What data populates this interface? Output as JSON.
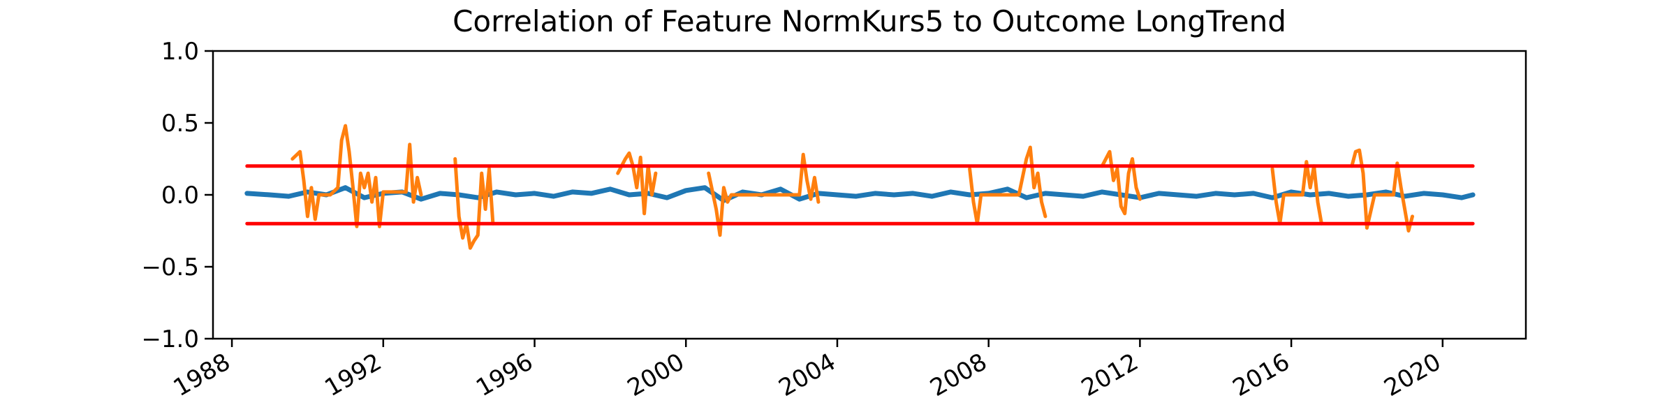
{
  "chart_data": {
    "type": "line",
    "title": "Correlation of Feature NormKurs5 to Outcome LongTrend",
    "xlabel": "",
    "ylabel": "",
    "xlim": [
      1987.5,
      2022.2
    ],
    "ylim": [
      -1.0,
      1.0
    ],
    "x_ticks": [
      1988,
      1992,
      1996,
      2000,
      2004,
      2008,
      2012,
      2016,
      2020
    ],
    "x_tick_labels": [
      "1988",
      "1992",
      "1996",
      "2000",
      "2004",
      "2008",
      "2012",
      "2016",
      "2020"
    ],
    "y_ticks": [
      -1.0,
      -0.5,
      0.0,
      0.5,
      1.0
    ],
    "y_tick_labels": [
      "−1.0",
      "−0.5",
      "0.0",
      "0.5",
      "1.0"
    ],
    "grid": false,
    "legend": "none",
    "series": [
      {
        "color": "#1f77b4",
        "x": [
          1988.4,
          1989.0,
          1989.5,
          1990.0,
          1990.5,
          1991.0,
          1991.5,
          1992.0,
          1992.5,
          1993.0,
          1993.5,
          1994.0,
          1994.5,
          1995.0,
          1995.5,
          1996.0,
          1996.5,
          1997.0,
          1997.5,
          1998.0,
          1998.5,
          1999.0,
          1999.5,
          2000.0,
          2000.5,
          2001.0,
          2001.5,
          2002.0,
          2002.5,
          2003.0,
          2003.5,
          2004.0,
          2004.5,
          2005.0,
          2005.5,
          2006.0,
          2006.5,
          2007.0,
          2007.5,
          2008.0,
          2008.5,
          2009.0,
          2009.5,
          2010.0,
          2010.5,
          2011.0,
          2011.5,
          2012.0,
          2012.5,
          2013.0,
          2013.5,
          2014.0,
          2014.5,
          2015.0,
          2015.5,
          2016.0,
          2016.5,
          2017.0,
          2017.5,
          2018.0,
          2018.5,
          2019.0,
          2019.5,
          2020.0,
          2020.5,
          2020.8
        ],
        "y": [
          0.01,
          0.0,
          -0.01,
          0.02,
          0.0,
          0.05,
          -0.02,
          0.01,
          0.02,
          -0.03,
          0.01,
          0.0,
          -0.02,
          0.02,
          0.0,
          0.01,
          -0.01,
          0.02,
          0.01,
          0.04,
          0.0,
          0.01,
          -0.02,
          0.03,
          0.05,
          -0.04,
          0.02,
          0.0,
          0.04,
          -0.03,
          0.01,
          0.0,
          -0.01,
          0.01,
          0.0,
          0.01,
          -0.01,
          0.02,
          0.0,
          0.01,
          0.04,
          -0.02,
          0.01,
          0.0,
          -0.01,
          0.02,
          0.0,
          -0.02,
          0.01,
          0.0,
          -0.01,
          0.01,
          0.0,
          0.01,
          -0.02,
          0.02,
          0.0,
          0.01,
          -0.01,
          0.0,
          0.02,
          -0.01,
          0.01,
          0.0,
          -0.02,
          0.0
        ]
      },
      {
        "color": "#ff7f0e",
        "segments": [
          {
            "x": [
              1989.6,
              1989.8,
              1989.9,
              1990.0,
              1990.1,
              1990.2,
              1990.3,
              1990.6,
              1990.8,
              1990.9,
              1991.0,
              1991.1,
              1991.2,
              1991.3,
              1991.4,
              1991.5,
              1991.6,
              1991.7,
              1991.8,
              1991.9,
              1992.0,
              1992.3,
              1992.6,
              1992.7,
              1992.8,
              1992.9,
              1993.0
            ],
            "y": [
              0.25,
              0.3,
              0.1,
              -0.15,
              0.05,
              -0.17,
              0.0,
              0.0,
              0.05,
              0.38,
              0.48,
              0.3,
              0.05,
              -0.22,
              0.15,
              0.05,
              0.15,
              -0.05,
              0.12,
              -0.22,
              0.02,
              0.02,
              0.02,
              0.35,
              -0.05,
              0.12,
              0.0
            ]
          },
          {
            "x": [
              1993.9,
              1994.0,
              1994.1,
              1994.2,
              1994.3,
              1994.4,
              1994.5,
              1994.6,
              1994.7,
              1994.8,
              1994.9
            ],
            "y": [
              0.25,
              -0.15,
              -0.3,
              -0.2,
              -0.37,
              -0.32,
              -0.28,
              0.15,
              -0.1,
              0.18,
              -0.2
            ]
          },
          {
            "x": [
              1998.2,
              1998.4,
              1998.5,
              1998.6,
              1998.7,
              1998.8,
              1998.9,
              1999.0,
              1999.1,
              1999.2
            ],
            "y": [
              0.15,
              0.25,
              0.29,
              0.2,
              0.05,
              0.26,
              -0.13,
              0.2,
              0.0,
              0.15
            ]
          },
          {
            "x": [
              2000.6,
              2000.8,
              2000.9,
              2001.0,
              2001.1,
              2001.2,
              2001.5,
              2002.0,
              2002.5,
              2003.0,
              2003.1,
              2003.2,
              2003.3,
              2003.4,
              2003.5
            ],
            "y": [
              0.15,
              -0.1,
              -0.28,
              0.05,
              -0.05,
              0.0,
              0.0,
              0.0,
              0.0,
              0.0,
              0.28,
              0.1,
              -0.03,
              0.12,
              -0.05
            ]
          },
          {
            "x": [
              2007.5,
              2007.6,
              2007.7,
              2007.8,
              2008.0,
              2008.5,
              2008.8,
              2009.0,
              2009.1,
              2009.2,
              2009.3,
              2009.4,
              2009.5
            ],
            "y": [
              0.18,
              -0.05,
              -0.2,
              0.0,
              0.0,
              0.0,
              0.0,
              0.25,
              0.33,
              0.05,
              0.15,
              -0.05,
              -0.15
            ]
          },
          {
            "x": [
              2011.0,
              2011.2,
              2011.3,
              2011.4,
              2011.5,
              2011.6,
              2011.7,
              2011.8,
              2011.9,
              2012.0
            ],
            "y": [
              0.2,
              0.3,
              0.1,
              0.18,
              -0.08,
              -0.13,
              0.15,
              0.25,
              0.05,
              -0.03
            ]
          },
          {
            "x": [
              2015.5,
              2015.6,
              2015.7,
              2015.8,
              2016.0,
              2016.3,
              2016.4,
              2016.5,
              2016.6,
              2016.7,
              2016.8
            ],
            "y": [
              0.18,
              -0.05,
              -0.2,
              0.0,
              0.0,
              0.0,
              0.23,
              0.05,
              0.2,
              -0.05,
              -0.2
            ]
          },
          {
            "x": [
              2017.6,
              2017.7,
              2017.8,
              2017.9,
              2018.0,
              2018.2,
              2018.5,
              2018.7,
              2018.8,
              2018.9,
              2019.0,
              2019.1,
              2019.2
            ],
            "y": [
              0.2,
              0.3,
              0.31,
              0.15,
              -0.23,
              0.0,
              0.0,
              0.0,
              0.22,
              0.05,
              -0.1,
              -0.25,
              -0.15
            ]
          }
        ]
      },
      {
        "color": "#ff0000",
        "x": [
          1988.4,
          2020.8
        ],
        "y": [
          0.2,
          0.2
        ]
      },
      {
        "color": "#ff0000",
        "x": [
          1988.4,
          2020.8
        ],
        "y": [
          -0.2,
          -0.2
        ]
      }
    ]
  }
}
